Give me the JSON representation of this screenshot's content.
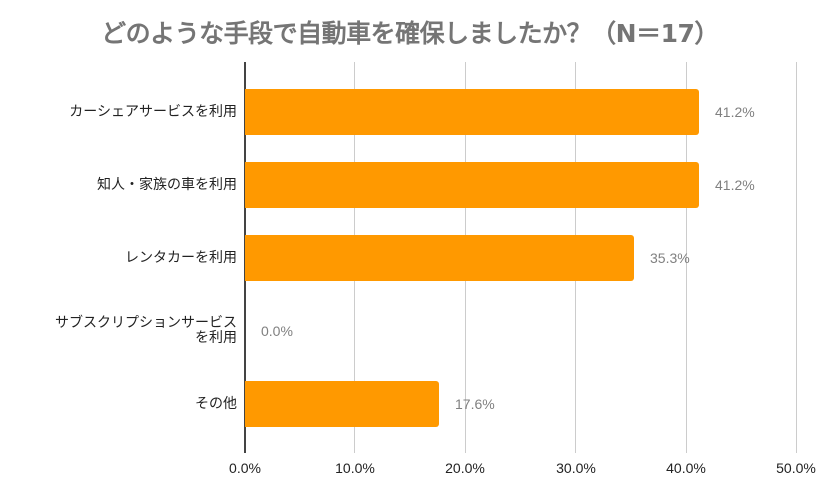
{
  "chart_data": {
    "type": "bar",
    "orientation": "horizontal",
    "title": "どのような手段で自動車を確保しましたか？（N＝17）",
    "categories": [
      "カーシェアサービスを利用",
      "知人・家族の車を利用",
      "レンタカーを利用",
      "サブスクリプションサービスを利用",
      "その他"
    ],
    "category_lines": [
      [
        "カーシェアサービスを利用"
      ],
      [
        "知人・家族の車を利用"
      ],
      [
        "レンタカーを利用"
      ],
      [
        "サブスクリプションサービス",
        "を利用"
      ],
      [
        "その他"
      ]
    ],
    "values": [
      41.2,
      41.2,
      35.3,
      0.0,
      17.6
    ],
    "value_labels": [
      "41.2%",
      "41.2%",
      "35.3%",
      "0.0%",
      "17.6%"
    ],
    "xlabel": "",
    "ylabel": "",
    "xlim": [
      0,
      50
    ],
    "xticks": [
      "0.0%",
      "10.0%",
      "20.0%",
      "30.0%",
      "40.0%",
      "50.0%"
    ],
    "grid": true,
    "legend": null,
    "colors": {
      "bar": "#ff9900",
      "title": "#757575",
      "value_label": "#808080",
      "gridline": "#cccccc",
      "axis": "#444444"
    }
  }
}
